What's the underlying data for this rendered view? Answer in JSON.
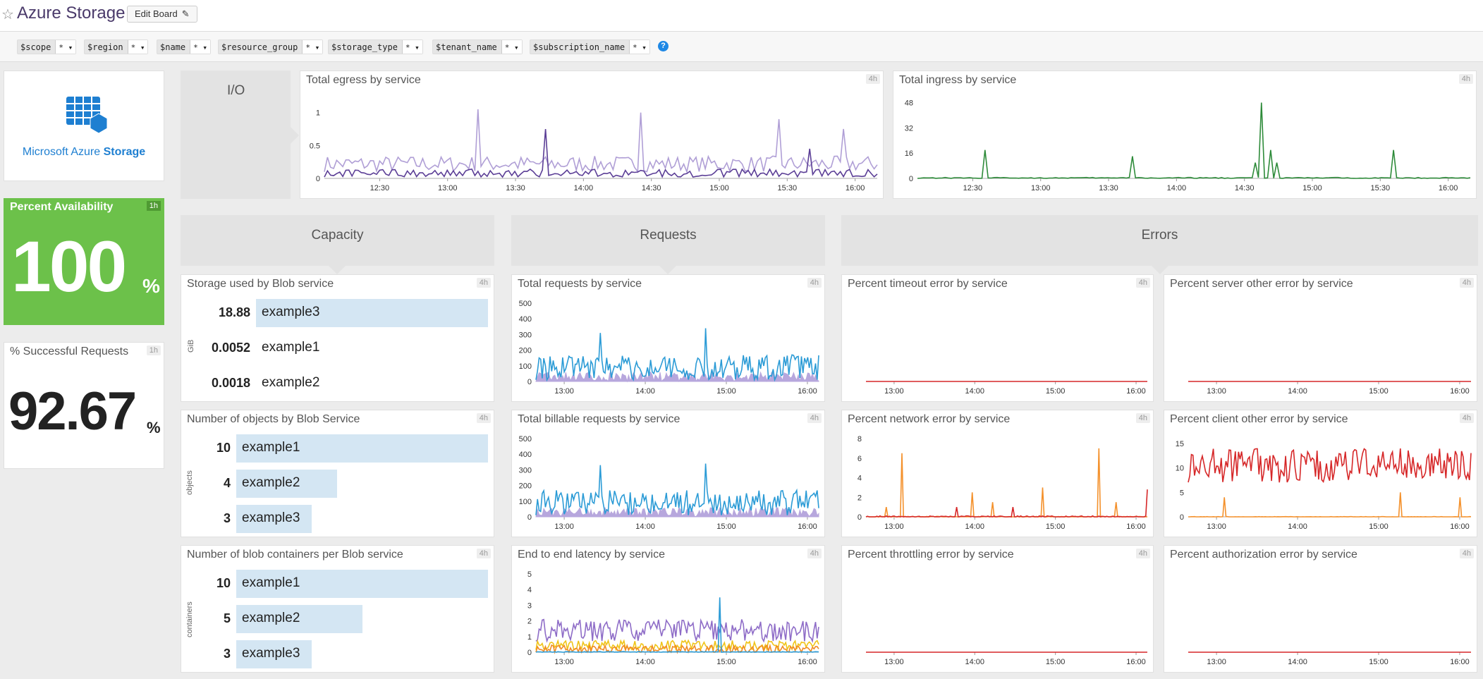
{
  "header": {
    "title": "Azure Storage",
    "edit_label": "Edit Board"
  },
  "template_vars": [
    {
      "name": "$scope",
      "value": "*"
    },
    {
      "name": "$region",
      "value": "*"
    },
    {
      "name": "$name",
      "value": "*"
    },
    {
      "name": "$resource_group",
      "value": "*"
    },
    {
      "name": "$storage_type",
      "value": "*"
    },
    {
      "name": "$tenant_name",
      "value": "*"
    },
    {
      "name": "$subscription_name",
      "value": "*"
    }
  ],
  "logo": {
    "text_light": "Microsoft Azure ",
    "text_bold": "Storage"
  },
  "availability": {
    "title": "Percent Availability",
    "badge": "1h",
    "value": "100",
    "unit": "%",
    "color": "#6cc14a"
  },
  "success": {
    "title": "% Successful Requests",
    "badge": "1h",
    "value": "92.67",
    "unit": "%"
  },
  "groups": {
    "io": "I/O",
    "capacity": "Capacity",
    "requests": "Requests",
    "errors": "Errors"
  },
  "widgets": {
    "egress": {
      "title": "Total egress by service",
      "badge": "4h"
    },
    "ingress": {
      "title": "Total ingress by service",
      "badge": "4h"
    },
    "storage": {
      "title": "Storage used by Blob service",
      "badge": "4h",
      "unit": "GiB",
      "rows": [
        {
          "value": "18.88",
          "name": "example3",
          "frac": 1.0
        },
        {
          "value": "0.0052",
          "name": "example1",
          "frac": 0
        },
        {
          "value": "0.0018",
          "name": "example2",
          "frac": 0
        }
      ]
    },
    "objects": {
      "title": "Number of objects by Blob Service",
      "badge": "4h",
      "unit": "objects",
      "rows": [
        {
          "value": "10",
          "name": "example1",
          "frac": 1.0
        },
        {
          "value": "4",
          "name": "example2",
          "frac": 0.4
        },
        {
          "value": "3",
          "name": "example3",
          "frac": 0.3
        }
      ]
    },
    "containers": {
      "title": "Number of blob containers per Blob service",
      "badge": "4h",
      "unit": "containers",
      "rows": [
        {
          "value": "10",
          "name": "example1",
          "frac": 1.0
        },
        {
          "value": "5",
          "name": "example2",
          "frac": 0.5
        },
        {
          "value": "3",
          "name": "example3",
          "frac": 0.3
        }
      ]
    },
    "total_requests": {
      "title": "Total requests by service",
      "badge": "4h"
    },
    "billable_requests": {
      "title": "Total billable requests by service",
      "badge": "4h"
    },
    "latency": {
      "title": "End to end latency by service",
      "badge": "4h"
    },
    "timeout_err": {
      "title": "Percent timeout error by service",
      "badge": "4h"
    },
    "server_other_err": {
      "title": "Percent server other error by service",
      "badge": "4h"
    },
    "network_err": {
      "title": "Percent network error by service",
      "badge": "4h"
    },
    "client_other_err": {
      "title": "Percent client other error by service",
      "badge": "4h"
    },
    "throttling_err": {
      "title": "Percent throttling error by service",
      "badge": "4h"
    },
    "authorization_err": {
      "title": "Percent authorization error by service",
      "badge": "4h"
    }
  },
  "chart_data": [
    {
      "id": "egress",
      "type": "line",
      "ylim": [
        0,
        1.2
      ],
      "yticks": [
        "0",
        "0.5",
        "1"
      ],
      "xticks": [
        "12:30",
        "13:00",
        "13:30",
        "14:00",
        "14:30",
        "15:00",
        "15:30",
        "16:00"
      ],
      "series": [
        {
          "color": "#b09fd6",
          "base": 0.22,
          "noise": 0.12,
          "spikes": [
            [
              0.28,
              1.05
            ],
            [
              0.57,
              1.0
            ],
            [
              0.82,
              0.9
            ],
            [
              0.94,
              0.75
            ]
          ]
        },
        {
          "color": "#5b3e96",
          "base": 0.08,
          "noise": 0.06,
          "spikes": [
            [
              0.4,
              0.75
            ],
            [
              0.88,
              0.45
            ]
          ]
        }
      ]
    },
    {
      "id": "ingress",
      "type": "line",
      "ylim": [
        0,
        50
      ],
      "yticks": [
        "0",
        "16",
        "32",
        "48"
      ],
      "xticks": [
        "12:30",
        "13:00",
        "13:30",
        "14:00",
        "14:30",
        "15:00",
        "15:30",
        "16:00"
      ],
      "series": [
        {
          "color": "#2e8b3a",
          "base": 0.3,
          "noise": 0.3,
          "spikes": [
            [
              0.12,
              18
            ],
            [
              0.39,
              14
            ],
            [
              0.61,
              10
            ],
            [
              0.62,
              48
            ],
            [
              0.64,
              18
            ],
            [
              0.65,
              10
            ],
            [
              0.86,
              18
            ]
          ]
        }
      ]
    },
    {
      "id": "total_requests",
      "type": "area",
      "ylim": [
        0,
        500
      ],
      "yticks": [
        "0",
        "100",
        "200",
        "300",
        "400",
        "500"
      ],
      "xticks": [
        "13:00",
        "14:00",
        "15:00",
        "16:00"
      ],
      "series": [
        {
          "color": "#b7a7dd",
          "base": 30,
          "noise": 30,
          "fill": true,
          "spikes": []
        },
        {
          "color": "#2b9bd6",
          "base": 90,
          "noise": 80,
          "spikes": [
            [
              0.23,
              310
            ],
            [
              0.6,
              340
            ]
          ]
        }
      ]
    },
    {
      "id": "billable_requests",
      "type": "area",
      "ylim": [
        0,
        500
      ],
      "yticks": [
        "0",
        "100",
        "200",
        "300",
        "400",
        "500"
      ],
      "xticks": [
        "13:00",
        "14:00",
        "15:00",
        "16:00"
      ],
      "series": [
        {
          "color": "#b7a7dd",
          "base": 30,
          "noise": 30,
          "fill": true,
          "spikes": []
        },
        {
          "color": "#2b9bd6",
          "base": 90,
          "noise": 80,
          "spikes": [
            [
              0.23,
              330
            ],
            [
              0.6,
              340
            ]
          ]
        }
      ]
    },
    {
      "id": "latency",
      "type": "line",
      "ylim": [
        0,
        5
      ],
      "yticks": [
        "0",
        "1",
        "2",
        "3",
        "4",
        "5"
      ],
      "xticks": [
        "13:00",
        "14:00",
        "15:00",
        "16:00"
      ],
      "series": [
        {
          "color": "#8e6cc7",
          "base": 1.4,
          "noise": 0.7,
          "spikes": []
        },
        {
          "color": "#f0c419",
          "base": 0.45,
          "noise": 0.3,
          "spikes": []
        },
        {
          "color": "#f08a24",
          "base": 0.2,
          "noise": 0.25,
          "spikes": []
        },
        {
          "color": "#2b9bd6",
          "base": 0.02,
          "noise": 0.02,
          "spikes": [
            [
              0.65,
              3.5
            ]
          ]
        }
      ]
    },
    {
      "id": "timeout_err",
      "type": "line",
      "ylim": [
        0,
        1
      ],
      "yticks": [],
      "xticks": [
        "13:00",
        "14:00",
        "15:00",
        "16:00"
      ],
      "series": [
        {
          "color": "#d62728",
          "base": 0,
          "noise": 0,
          "spikes": []
        }
      ]
    },
    {
      "id": "server_other_err",
      "type": "line",
      "ylim": [
        0,
        1
      ],
      "yticks": [],
      "xticks": [
        "13:00",
        "14:00",
        "15:00",
        "16:00"
      ],
      "series": [
        {
          "color": "#d62728",
          "base": 0,
          "noise": 0,
          "spikes": []
        }
      ]
    },
    {
      "id": "network_err",
      "type": "line",
      "ylim": [
        0,
        8
      ],
      "yticks": [
        "0",
        "2",
        "4",
        "6",
        "8"
      ],
      "xticks": [
        "13:00",
        "14:00",
        "15:00",
        "16:00"
      ],
      "series": [
        {
          "color": "#f4912c",
          "base": 0,
          "noise": 0.05,
          "spikes": [
            [
              0.07,
              1
            ],
            [
              0.13,
              6.5
            ],
            [
              0.38,
              2.5
            ],
            [
              0.45,
              1.5
            ],
            [
              0.63,
              3
            ],
            [
              0.83,
              7
            ],
            [
              0.89,
              1.5
            ]
          ]
        },
        {
          "color": "#d62728",
          "base": 0,
          "noise": 0.1,
          "spikes": [
            [
              0.32,
              1
            ],
            [
              0.52,
              1
            ],
            [
              1.0,
              2.8
            ]
          ]
        }
      ]
    },
    {
      "id": "client_other_err",
      "type": "line",
      "ylim": [
        0,
        16
      ],
      "yticks": [
        "0",
        "5",
        "10",
        "15"
      ],
      "xticks": [
        "13:00",
        "14:00",
        "15:00",
        "16:00"
      ],
      "series": [
        {
          "color": "#d62728",
          "base": 10.5,
          "noise": 3.5,
          "spikes": []
        },
        {
          "color": "#f4912c",
          "base": 0,
          "noise": 0.05,
          "spikes": [
            [
              0.13,
              4
            ],
            [
              0.75,
              5
            ],
            [
              0.96,
              4
            ]
          ]
        }
      ]
    },
    {
      "id": "throttling_err",
      "type": "line",
      "ylim": [
        0,
        1
      ],
      "yticks": [],
      "xticks": [
        "13:00",
        "14:00",
        "15:00",
        "16:00"
      ],
      "series": [
        {
          "color": "#d62728",
          "base": 0,
          "noise": 0,
          "spikes": []
        }
      ]
    },
    {
      "id": "authorization_err",
      "type": "line",
      "ylim": [
        0,
        1
      ],
      "yticks": [],
      "xticks": [
        "13:00",
        "14:00",
        "15:00",
        "16:00"
      ],
      "series": [
        {
          "color": "#d62728",
          "base": 0,
          "noise": 0,
          "spikes": []
        }
      ]
    }
  ]
}
